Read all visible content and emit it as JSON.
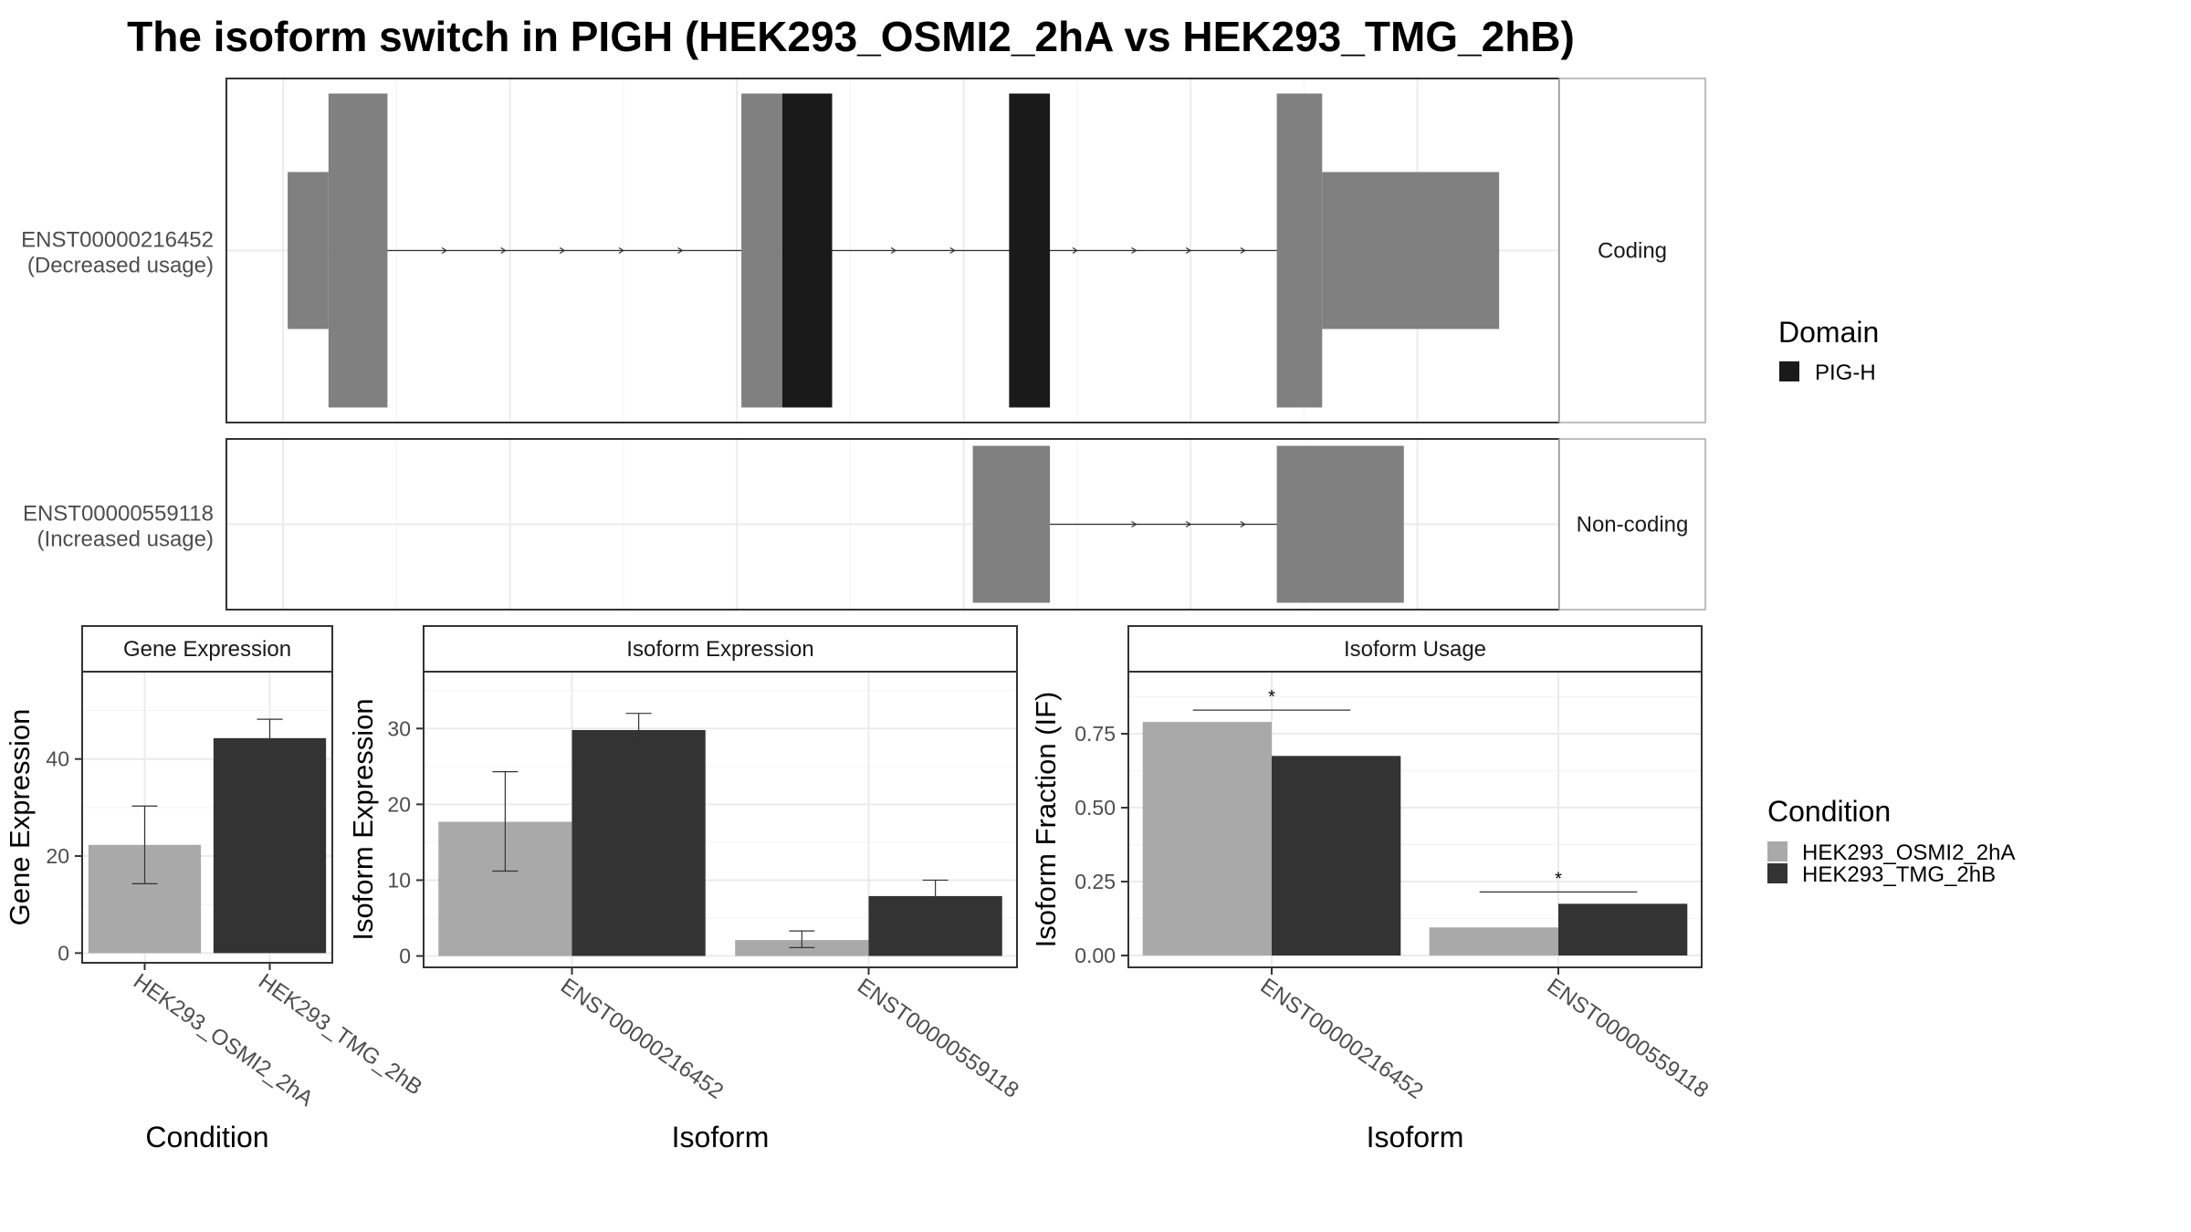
{
  "title": "The isoform switch in PIGH (HEK293_OSMI2_2hA vs HEK293_TMG_2hB)",
  "colors": {
    "exon": "#808080",
    "domain": "#1a1a1a",
    "cond_a": "#a9a9a9",
    "cond_b": "#333333",
    "grid": "#ebebeb",
    "panel_border": "#333333",
    "strip_bg": "#ffffff"
  },
  "chart_data": [
    {
      "type": "gene-structure",
      "x_grid_positions": [
        0,
        1,
        2,
        3,
        4,
        5
      ],
      "x_range": [
        -0.25,
        5.625
      ],
      "tracks": [
        {
          "label": "ENST00000216452",
          "sublabel": "(Decreased usage)",
          "facet": "Coding",
          "intron": [
            0.45,
            4.38
          ],
          "arrows": [
            0.72,
            0.98,
            1.24,
            1.5,
            1.76,
            2.7,
            2.96,
            3.22,
            3.5,
            3.76,
            4.0,
            4.24
          ],
          "exons": [
            {
              "start": 0.02,
              "end": 0.2,
              "kind": "utr"
            },
            {
              "start": 0.2,
              "end": 0.46,
              "kind": "cds"
            },
            {
              "start": 2.02,
              "end": 2.2,
              "kind": "cds"
            },
            {
              "start": 2.2,
              "end": 2.42,
              "kind": "domain"
            },
            {
              "start": 3.2,
              "end": 3.38,
              "kind": "domain"
            },
            {
              "start": 4.38,
              "end": 4.58,
              "kind": "cds"
            },
            {
              "start": 4.58,
              "end": 5.36,
              "kind": "utr"
            }
          ]
        },
        {
          "label": "ENST00000559118",
          "sublabel": "(Increased usage)",
          "facet": "Non-coding",
          "intron": [
            3.38,
            4.38
          ],
          "arrows": [
            3.76,
            4.0,
            4.24
          ],
          "exons": [
            {
              "start": 3.04,
              "end": 3.38,
              "kind": "noncoding"
            },
            {
              "start": 4.38,
              "end": 4.94,
              "kind": "noncoding"
            }
          ]
        }
      ],
      "legend": {
        "title": "Domain",
        "items": [
          "PIG-H"
        ]
      }
    },
    {
      "type": "bar",
      "title": "Gene Expression",
      "xlabel": "Condition",
      "ylabel": "Gene Expression",
      "ylim": [
        -2,
        58
      ],
      "yticks": [
        0,
        20,
        40
      ],
      "categories": [
        "HEK293_OSMI2_2hA",
        "HEK293_TMG_2hB"
      ],
      "values": [
        22.3,
        44.3
      ],
      "errors": [
        [
          14.3,
          30.3
        ],
        [
          40.4,
          48.2
        ]
      ]
    },
    {
      "type": "bar",
      "title": "Isoform Expression",
      "xlabel": "Isoform",
      "ylabel": "Isoform Expression",
      "ylim": [
        -1.5,
        37.5
      ],
      "yticks": [
        0,
        10,
        20,
        30
      ],
      "categories": [
        "ENST00000216452",
        "ENST00000559118"
      ],
      "series": [
        {
          "name": "HEK293_OSMI2_2hA",
          "values": [
            17.7,
            2.1
          ],
          "errors": [
            [
              11.2,
              24.3
            ],
            [
              1.1,
              3.3
            ]
          ]
        },
        {
          "name": "HEK293_TMG_2hB",
          "values": [
            29.8,
            7.9
          ],
          "errors": [
            [
              27.6,
              32.0
            ],
            [
              5.8,
              10.0
            ]
          ]
        }
      ]
    },
    {
      "type": "bar",
      "title": "Isoform Usage",
      "xlabel": "Isoform",
      "ylabel": "Isoform Fraction (IF)",
      "ylim": [
        -0.04,
        0.96
      ],
      "yticks": [
        "0.00",
        "0.25",
        "0.50",
        "0.75"
      ],
      "categories": [
        "ENST00000216452",
        "ENST00000559118"
      ],
      "series": [
        {
          "name": "HEK293_OSMI2_2hA",
          "values": [
            0.79,
            0.095
          ]
        },
        {
          "name": "HEK293_TMG_2hB",
          "values": [
            0.675,
            0.175
          ]
        }
      ],
      "significance": [
        {
          "category": 0,
          "y": 0.83,
          "label": "*"
        },
        {
          "category": 1,
          "y": 0.215,
          "label": "*"
        }
      ]
    }
  ],
  "legend_condition": {
    "title": "Condition",
    "items": [
      "HEK293_OSMI2_2hA",
      "HEK293_TMG_2hB"
    ]
  }
}
